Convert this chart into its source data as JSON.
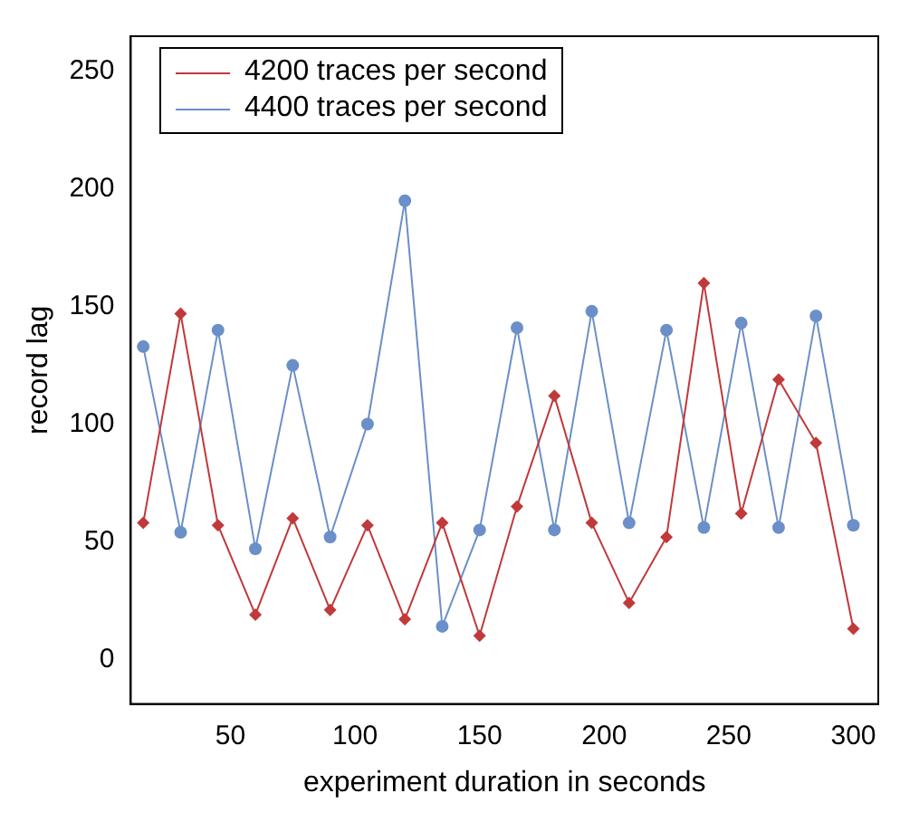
{
  "chart_data": {
    "type": "line",
    "xlabel": "experiment duration in seconds",
    "ylabel": "record lag",
    "x": [
      15,
      30,
      45,
      60,
      75,
      90,
      105,
      120,
      135,
      150,
      165,
      180,
      195,
      210,
      225,
      240,
      255,
      270,
      285,
      300
    ],
    "series": [
      {
        "name": "4200 traces per second",
        "color": "#c0393b",
        "marker": "diamond",
        "values": [
          58,
          147,
          57,
          19,
          60,
          21,
          57,
          17,
          58,
          10,
          65,
          112,
          58,
          24,
          52,
          160,
          62,
          119,
          92,
          13
        ]
      },
      {
        "name": "4400 traces per second",
        "color": "#6b8fc8",
        "marker": "circle",
        "values": [
          133,
          54,
          140,
          47,
          125,
          52,
          100,
          195,
          14,
          55,
          141,
          55,
          148,
          58,
          140,
          56,
          143,
          56,
          146,
          57
        ]
      }
    ],
    "xlim": [
      10,
      310
    ],
    "ylim": [
      -19,
      265
    ],
    "xticks": [
      50,
      100,
      150,
      200,
      250,
      300
    ],
    "yticks": [
      0,
      50,
      100,
      150,
      200,
      250
    ],
    "grid": false,
    "legend": "top left",
    "line_style": "solid"
  }
}
